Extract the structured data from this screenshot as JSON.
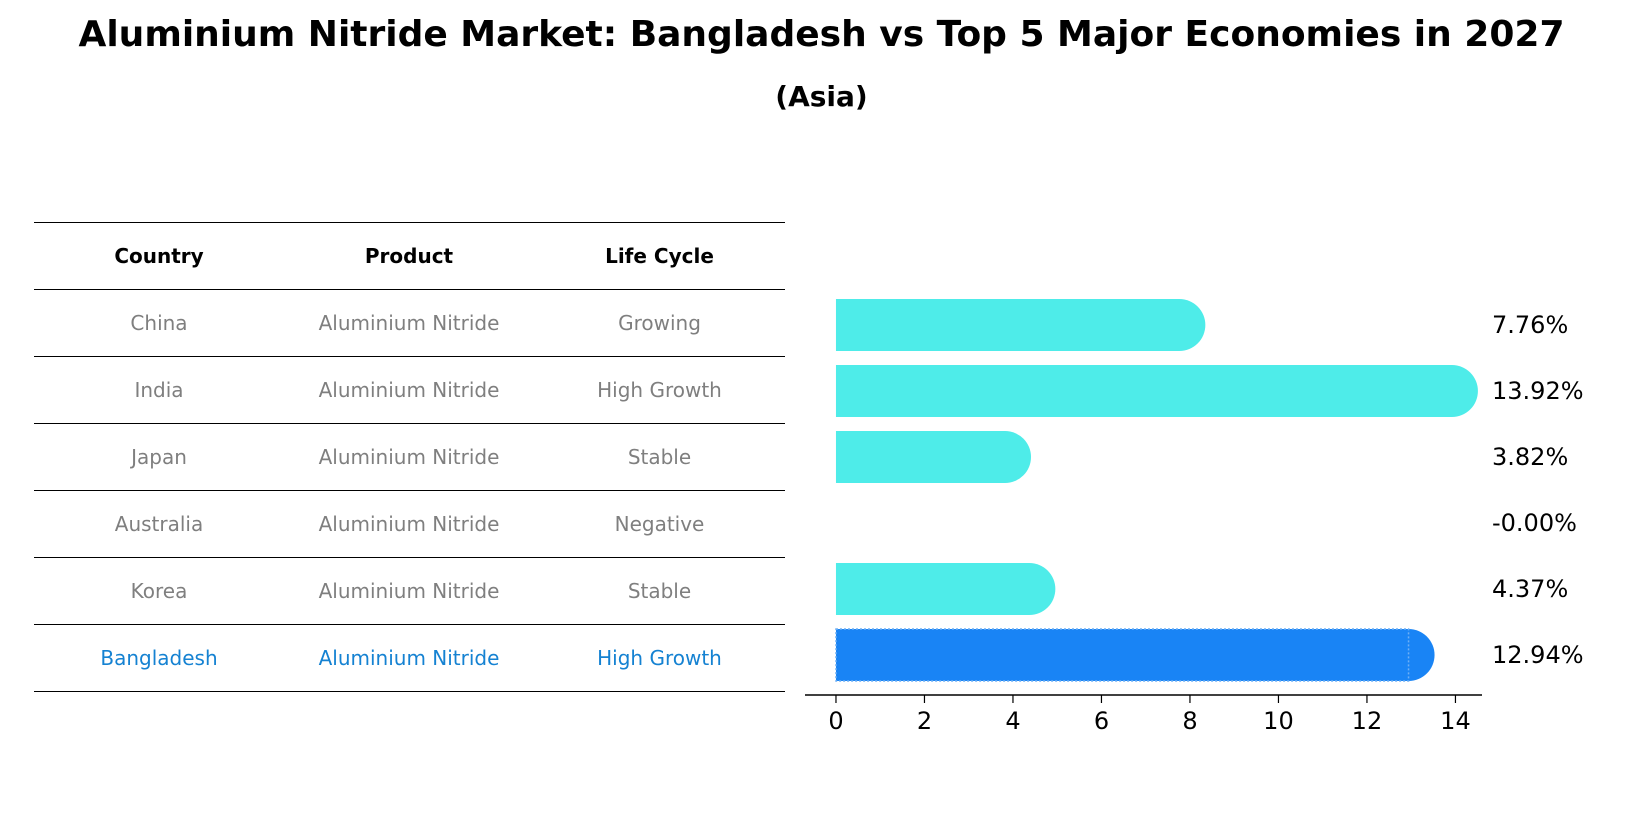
{
  "title": "Aluminium Nitride Market: Bangladesh vs Top 5 Major Economies in 2027",
  "subtitle": "(Asia)",
  "table": {
    "headers": [
      "Country",
      "Product",
      "Life Cycle"
    ],
    "rows": [
      {
        "country": "China",
        "product": "Aluminium Nitride",
        "life_cycle": "Growing",
        "highlight": false
      },
      {
        "country": "India",
        "product": "Aluminium Nitride",
        "life_cycle": "High Growth",
        "highlight": false
      },
      {
        "country": "Japan",
        "product": "Aluminium Nitride",
        "life_cycle": "Stable",
        "highlight": false
      },
      {
        "country": "Australia",
        "product": "Aluminium Nitride",
        "life_cycle": "Negative",
        "highlight": false
      },
      {
        "country": "Korea",
        "product": "Aluminium Nitride",
        "life_cycle": "Stable",
        "highlight": false
      },
      {
        "country": "Bangladesh",
        "product": "Aluminium Nitride",
        "life_cycle": "High Growth",
        "highlight": true
      }
    ]
  },
  "colors": {
    "bar": "#4eece9",
    "highlight_bar": "#1984f5",
    "highlight_text": "#1582d2",
    "muted_text": "#7f7f7f"
  },
  "chart_data": {
    "type": "bar",
    "orientation": "horizontal",
    "categories": [
      "China",
      "India",
      "Japan",
      "Australia",
      "Korea",
      "Bangladesh"
    ],
    "values": [
      7.76,
      13.92,
      3.82,
      -0.0,
      4.37,
      12.94
    ],
    "value_labels": [
      "7.76%",
      "13.92%",
      "3.82%",
      "-0.00%",
      "4.37%",
      "12.94%"
    ],
    "highlight": "Bangladesh",
    "xlim": [
      -0.7,
      14.6
    ],
    "xticks": [
      0,
      2,
      4,
      6,
      8,
      10,
      12,
      14
    ],
    "xlabel": "",
    "ylabel": "",
    "grid": false
  }
}
